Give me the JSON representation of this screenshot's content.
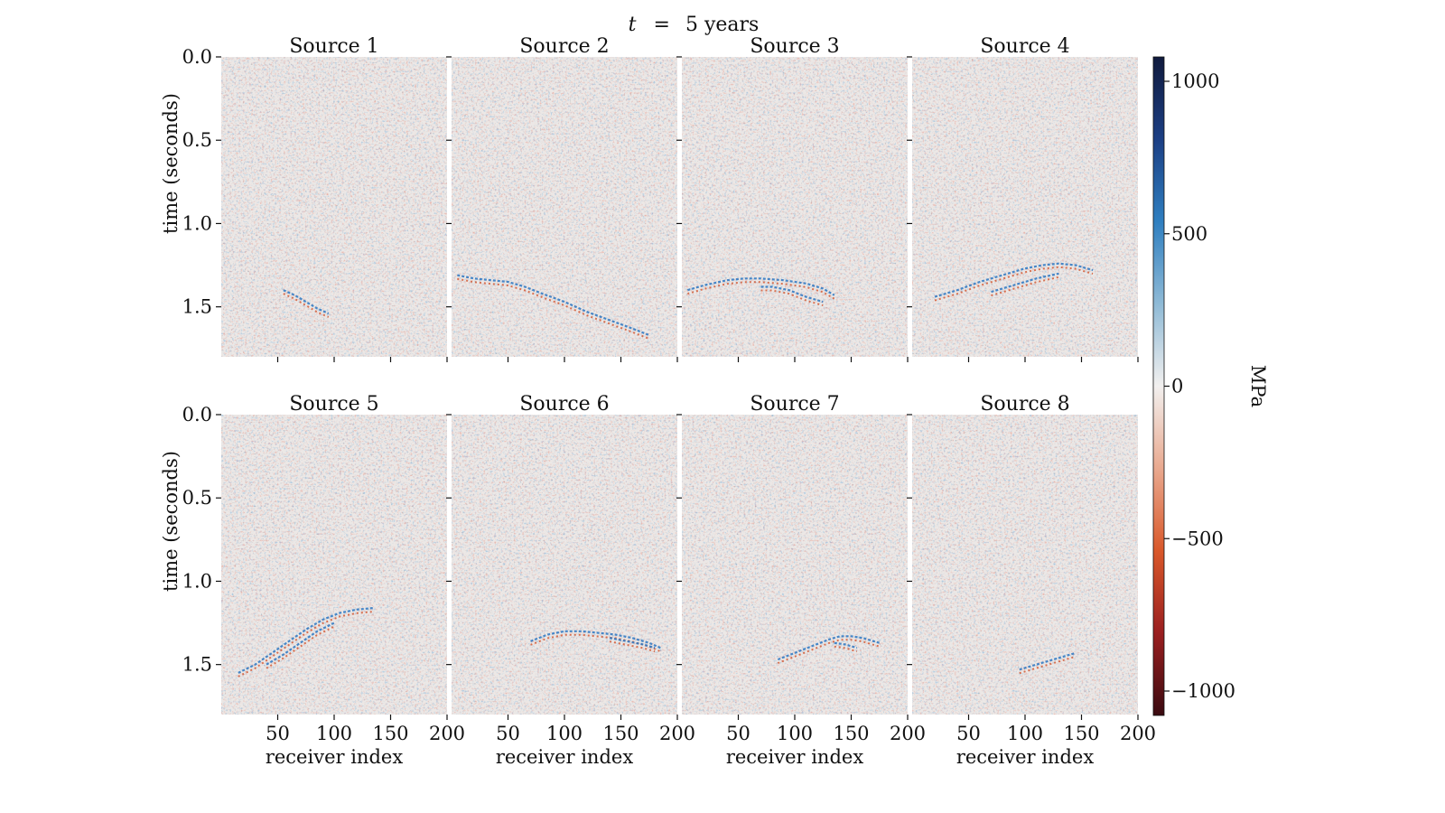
{
  "chart_data": {
    "type": "heatmap",
    "title_prefix": "t",
    "title_eq": "=",
    "title_value": "5 years",
    "layout": {
      "rows": 2,
      "cols": 4,
      "sharex": true,
      "sharey": true
    },
    "xlabel": "receiver index",
    "ylabel": "time (seconds)",
    "xlim": [
      0,
      200
    ],
    "ylim": [
      1.8,
      0.0
    ],
    "xticks": [
      50,
      100,
      150,
      200
    ],
    "xtick_labels": [
      "50",
      "100",
      "150",
      "200"
    ],
    "yticks": [
      0.0,
      0.5,
      1.0,
      1.5
    ],
    "ytick_labels": [
      "0.0",
      "0.5",
      "1.0",
      "1.5"
    ],
    "colorbar": {
      "label": "MPa",
      "range": [
        -1080,
        1080
      ],
      "ticks": [
        1000,
        500,
        0,
        -500,
        -1000
      ],
      "tick_labels": [
        "1000",
        "500",
        "0",
        "−500",
        "−1000"
      ],
      "colormap": [
        "#3a0a10",
        "#9a1f20",
        "#d9582a",
        "#e9a98f",
        "#f2f0ef",
        "#8fbad6",
        "#2f7fc0",
        "#1c3f84",
        "#101a3d"
      ]
    },
    "panels": [
      {
        "title": "Source 1",
        "events": [
          {
            "x": [
              55,
              65,
              75,
              85,
              95
            ],
            "t": [
              1.4,
              1.43,
              1.47,
              1.51,
              1.54
            ]
          }
        ]
      },
      {
        "title": "Source 2",
        "events": [
          {
            "x": [
              5,
              20,
              35,
              50,
              65,
              80,
              100,
              120,
              140,
              160,
              175
            ],
            "t": [
              1.31,
              1.33,
              1.34,
              1.35,
              1.38,
              1.42,
              1.47,
              1.53,
              1.58,
              1.63,
              1.67
            ]
          }
        ]
      },
      {
        "title": "Source 3",
        "events": [
          {
            "x": [
              5,
              20,
              40,
              55,
              70,
              90,
              110,
              125,
              135
            ],
            "t": [
              1.4,
              1.37,
              1.34,
              1.33,
              1.33,
              1.34,
              1.36,
              1.39,
              1.43
            ]
          },
          {
            "x": [
              70,
              80,
              95,
              110,
              125
            ],
            "t": [
              1.38,
              1.38,
              1.4,
              1.44,
              1.47
            ]
          }
        ]
      },
      {
        "title": "Source 4",
        "events": [
          {
            "x": [
              20,
              40,
              60,
              80,
              100,
              115,
              130,
              145,
              160
            ],
            "t": [
              1.44,
              1.4,
              1.35,
              1.31,
              1.27,
              1.25,
              1.24,
              1.25,
              1.28
            ]
          },
          {
            "x": [
              70,
              90,
              110,
              130
            ],
            "t": [
              1.41,
              1.37,
              1.33,
              1.3
            ]
          }
        ]
      },
      {
        "title": "Source 5",
        "events": [
          {
            "x": [
              15,
              30,
              45,
              60,
              75,
              90,
              105,
              120,
              135
            ],
            "t": [
              1.55,
              1.5,
              1.43,
              1.36,
              1.29,
              1.23,
              1.19,
              1.17,
              1.16
            ]
          },
          {
            "x": [
              40,
              55,
              70,
              85,
              100
            ],
            "t": [
              1.5,
              1.44,
              1.37,
              1.3,
              1.25
            ]
          }
        ]
      },
      {
        "title": "Source 6",
        "events": [
          {
            "x": [
              70,
              85,
              100,
              115,
              130,
              145,
              160,
              175,
              185
            ],
            "t": [
              1.36,
              1.32,
              1.3,
              1.3,
              1.31,
              1.32,
              1.34,
              1.37,
              1.4
            ]
          },
          {
            "x": [
              140,
              155,
              170,
              180
            ],
            "t": [
              1.34,
              1.36,
              1.38,
              1.4
            ]
          }
        ]
      },
      {
        "title": "Source 7",
        "events": [
          {
            "x": [
              85,
              100,
              115,
              130,
              140,
              150,
              160,
              175
            ],
            "t": [
              1.47,
              1.43,
              1.39,
              1.35,
              1.33,
              1.33,
              1.34,
              1.37
            ]
          },
          {
            "x": [
              135,
              145,
              155
            ],
            "t": [
              1.37,
              1.38,
              1.4
            ]
          }
        ]
      },
      {
        "title": "Source 8",
        "events": [
          {
            "x": [
              95,
              105,
              115,
              125,
              135,
              145
            ],
            "t": [
              1.53,
              1.51,
              1.49,
              1.47,
              1.45,
              1.43
            ]
          }
        ]
      }
    ]
  }
}
